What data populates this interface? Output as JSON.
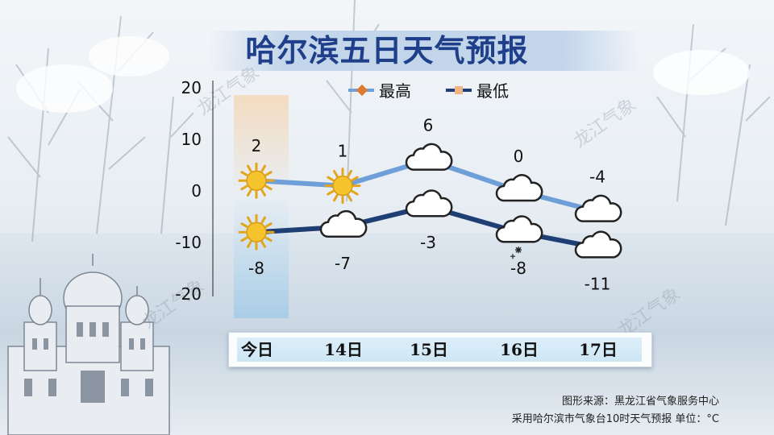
{
  "title": "哈尔滨五日天气预报",
  "watermark": "龙江气象",
  "footer": {
    "line1": "图形来源：黑龙江省气象服务中心",
    "line2": "采用哈尔滨市气象台10时天气预报 单位：°C"
  },
  "colors": {
    "high_line": "#6f9fd8",
    "low_line": "#1f3f74",
    "title": "#1f3f8a",
    "today_band_top": "#f3dcc0",
    "today_band_bottom": "#a9cde6"
  },
  "chart_data": {
    "type": "line",
    "categories": [
      "今日",
      "14日",
      "15日",
      "16日",
      "17日"
    ],
    "series": [
      {
        "name": "最高",
        "values": [
          2,
          1,
          6,
          0,
          -4
        ]
      },
      {
        "name": "最低",
        "values": [
          -8,
          -7,
          -3,
          -8,
          -11
        ]
      }
    ],
    "y_ticks": [
      "20",
      "10",
      "0",
      "-10",
      "-20"
    ],
    "ylim": [
      -20,
      20
    ],
    "high_icons": [
      "sun-icon",
      "sun-icon",
      "cloud-icon",
      "cloud-icon",
      "cloud-icon"
    ],
    "low_icons": [
      "sun-icon",
      "cloud-icon",
      "cloud-icon",
      "cloud-snow-icon",
      "cloud-icon"
    ],
    "legend_position": "top",
    "grid": false,
    "highlight_category": "今日"
  }
}
